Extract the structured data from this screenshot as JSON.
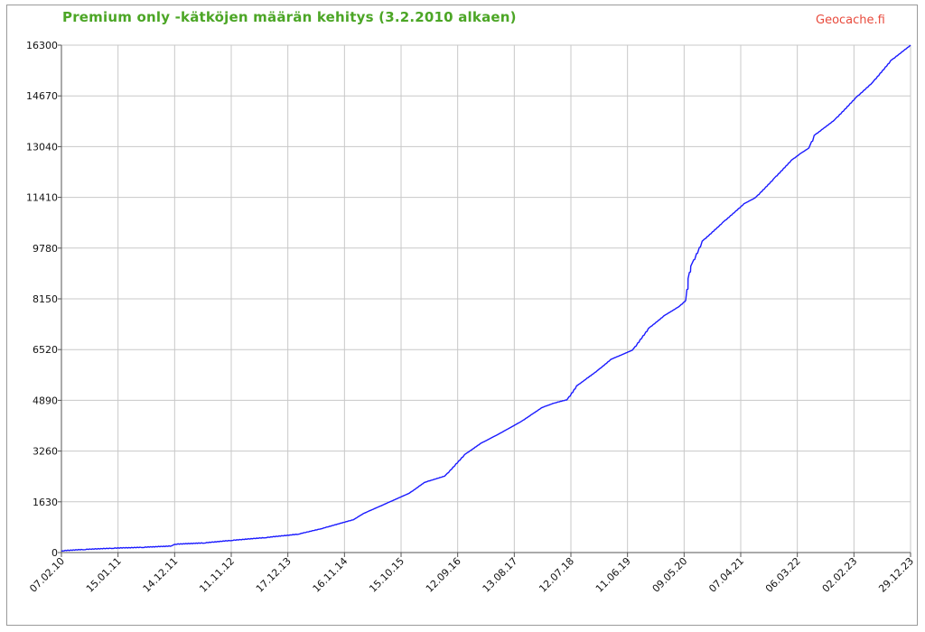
{
  "header": {
    "title": "Premium only -kätköjen määrän kehitys (3.2.2010 alkaen)",
    "brand": "Geocache.fi"
  },
  "colors": {
    "title": "#4ca626",
    "brand": "#e84a3c",
    "line": "#1a1aff",
    "grid": "#c8c8c8"
  },
  "chart_data": {
    "type": "line",
    "title": "Premium only -kätköjen määrän kehitys (3.2.2010 alkaen)",
    "xlabel": "",
    "ylabel": "",
    "grid": true,
    "legend": "none",
    "ylim": [
      0,
      16300
    ],
    "xlim": [
      "2010-02-07",
      "2023-12-29"
    ],
    "y_ticks": [
      "0",
      "1630",
      "3260",
      "4890",
      "6520",
      "8150",
      "9780",
      "11410",
      "13040",
      "14670",
      "16300"
    ],
    "x_ticks": [
      "07.02.10",
      "15.01.11",
      "14.12.11",
      "11.11.12",
      "17.12.13",
      "16.11.14",
      "15.10.15",
      "12.09.16",
      "13.08.17",
      "12.07.18",
      "11.06.19",
      "09.05.20",
      "07.04.21",
      "06.03.22",
      "02.02.23",
      "29.12.23"
    ],
    "series": [
      {
        "x": [
          "2010-02-07",
          "2010-06-15",
          "2010-12-01",
          "2011-06-01",
          "2011-11-20",
          "2011-12-14",
          "2012-06-01",
          "2012-11-11",
          "2013-06-01",
          "2013-12-17",
          "2014-05-01",
          "2014-11-16",
          "2015-01-15",
          "2015-05-01",
          "2015-10-15",
          "2016-01-15",
          "2016-05-15",
          "2016-09-12",
          "2016-12-15",
          "2017-04-01",
          "2017-08-13",
          "2017-12-15",
          "2018-03-01",
          "2018-05-15",
          "2018-07-12",
          "2018-11-15",
          "2019-02-01",
          "2019-06-11",
          "2019-09-15",
          "2019-12-15",
          "2020-03-15",
          "2020-04-25",
          "2020-05-09",
          "2020-05-25",
          "2020-08-01",
          "2020-12-01",
          "2021-04-07",
          "2021-06-15",
          "2021-10-01",
          "2022-01-15",
          "2022-03-06",
          "2022-05-01",
          "2022-06-01",
          "2022-10-01",
          "2023-02-02",
          "2023-05-15",
          "2023-09-01",
          "2023-12-29"
        ],
        "values": [
          50,
          90,
          130,
          160,
          200,
          260,
          300,
          380,
          470,
          580,
          750,
          1050,
          1250,
          1500,
          1900,
          2250,
          2450,
          3150,
          3500,
          3800,
          4200,
          4650,
          4800,
          4900,
          5350,
          5850,
          6200,
          6500,
          7200,
          7600,
          7900,
          8100,
          8800,
          9200,
          10000,
          10600,
          11200,
          11400,
          12000,
          12600,
          12800,
          13000,
          13400,
          13900,
          14600,
          15100,
          15800,
          16300
        ]
      }
    ]
  }
}
